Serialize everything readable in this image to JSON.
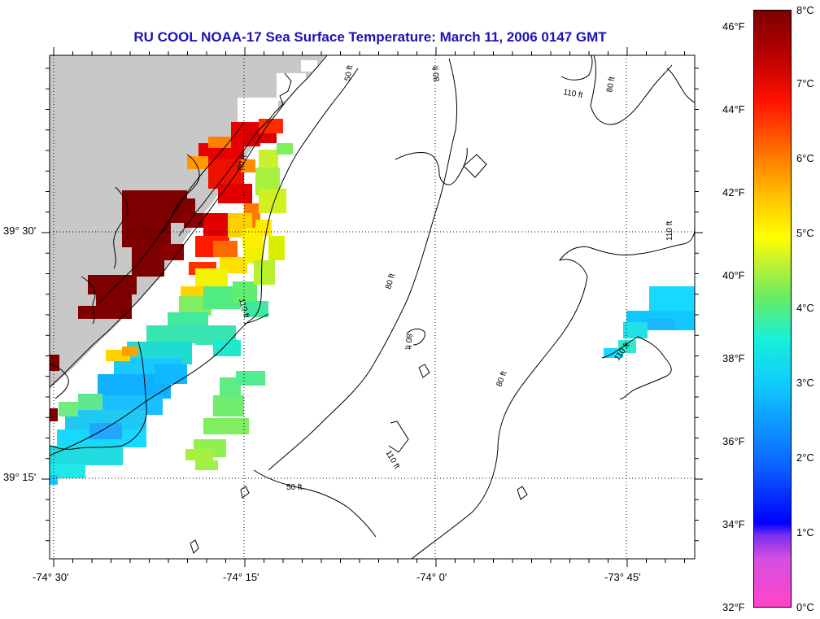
{
  "title": "RU COOL  NOAA-17  Sea Surface Temperature:  March 11, 2006 0147 GMT",
  "map": {
    "lat_labels": [
      "39° 30'",
      "39° 15'"
    ],
    "lon_labels": [
      "-74° 30'",
      "-74° 15'",
      "-74° 0'",
      "-73° 45'"
    ],
    "contour_labels": [
      "50 ft",
      "80 ft",
      "80 ft",
      "110 ft",
      "80 ft",
      "110 ft",
      "80 ft",
      "50 ft",
      "80 ft",
      "110 ft",
      "110 ft",
      "110 ft",
      "80 ft"
    ],
    "land_color": "#c8c8c8",
    "water_color": "#ffffff"
  },
  "colorbar": {
    "fahrenheit_labels": [
      "46°F",
      "44°F",
      "42°F",
      "40°F",
      "38°F",
      "36°F",
      "34°F",
      "32°F"
    ],
    "celsius_labels": [
      "8°C",
      "7°C",
      "6°C",
      "5°C",
      "4°C",
      "3°C",
      "2°C",
      "1°C",
      "0°C"
    ],
    "min_c": 0,
    "max_c": 8
  }
}
